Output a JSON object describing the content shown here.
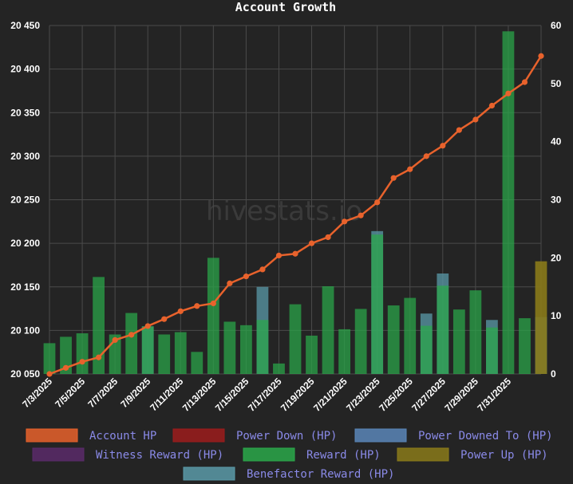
{
  "chart_data": {
    "type": "bar+line",
    "title": "Account Growth",
    "watermark": "hivestats.io",
    "x_labels": [
      "7/3/2025",
      "7/5/2025",
      "7/7/2025",
      "7/9/2025",
      "7/11/2025",
      "7/13/2025",
      "7/15/2025",
      "7/17/2025",
      "7/19/2025",
      "7/21/2025",
      "7/23/2025",
      "7/25/2025",
      "7/27/2025",
      "7/29/2025",
      "7/31/2025"
    ],
    "y_left": {
      "min": 20050,
      "max": 20450,
      "ticks": [
        20050,
        20100,
        20150,
        20200,
        20250,
        20300,
        20350,
        20400,
        20450
      ],
      "tick_labels": [
        "20 050",
        "20 100",
        "20 150",
        "20 200",
        "20 250",
        "20 300",
        "20 350",
        "20 400",
        "20 450"
      ]
    },
    "y_right": {
      "min": 0,
      "max": 60,
      "ticks": [
        0,
        10,
        20,
        30,
        40,
        50,
        60
      ]
    },
    "grid": true,
    "legend_position": "bottom",
    "series": [
      {
        "name": "Account HP",
        "color": "#e8622c",
        "type": "line",
        "axis": "left",
        "values": [
          20050,
          20057,
          20064,
          20069,
          20089,
          20095,
          20105,
          20113,
          20122,
          20128,
          20131,
          20154,
          20162,
          20170,
          20186,
          20188,
          20200,
          20207,
          20225,
          20232,
          20247,
          20275,
          20285,
          20300,
          20312,
          20330,
          20342,
          20358,
          20372,
          20385,
          20415
        ]
      },
      {
        "name": "Power Down (HP)",
        "color": "#9c1c1c",
        "type": "bar",
        "axis": "right",
        "values": []
      },
      {
        "name": "Power Downed To (HP)",
        "color": "#5a86b8",
        "type": "bar",
        "axis": "right",
        "values": []
      },
      {
        "name": "Witness Reward (HP)",
        "color": "#5a2a6a",
        "type": "bar",
        "axis": "right",
        "values": []
      },
      {
        "name": "Reward (HP)",
        "color": "#2aa84a",
        "type": "bar",
        "axis": "right",
        "values": [
          5.3,
          6.4,
          7.0,
          16.7,
          6.8,
          10.5,
          8.2,
          6.8,
          7.2,
          3.8,
          20.0,
          9.0,
          8.4,
          9.3,
          1.8,
          12.0,
          6.6,
          15.1,
          7.7,
          11.2,
          24.0,
          11.8,
          13.1,
          8.3,
          15.2,
          11.1,
          14.4,
          8.0,
          59.0,
          9.6,
          0
        ]
      },
      {
        "name": "Power Up (HP)",
        "color": "#8a7a1a",
        "type": "bar",
        "axis": "right",
        "values": [
          0,
          0,
          0,
          0,
          0,
          0,
          0,
          0,
          0,
          0,
          0,
          0,
          0,
          0,
          0,
          0,
          0,
          0,
          0,
          0,
          0,
          0,
          0,
          0,
          0,
          0,
          0,
          0,
          0,
          0,
          19.4
        ]
      },
      {
        "name": "Benefactor Reward (HP)",
        "color": "#5a9aa8",
        "type": "bar",
        "axis": "right",
        "values": [
          0,
          0,
          0,
          0,
          0,
          0,
          8.2,
          0,
          0,
          0,
          0,
          0,
          0,
          15.0,
          0,
          0,
          0,
          0,
          0,
          0,
          24.6,
          0,
          0,
          10.4,
          17.3,
          0,
          0,
          9.3,
          0,
          0,
          9.8
        ]
      }
    ]
  }
}
